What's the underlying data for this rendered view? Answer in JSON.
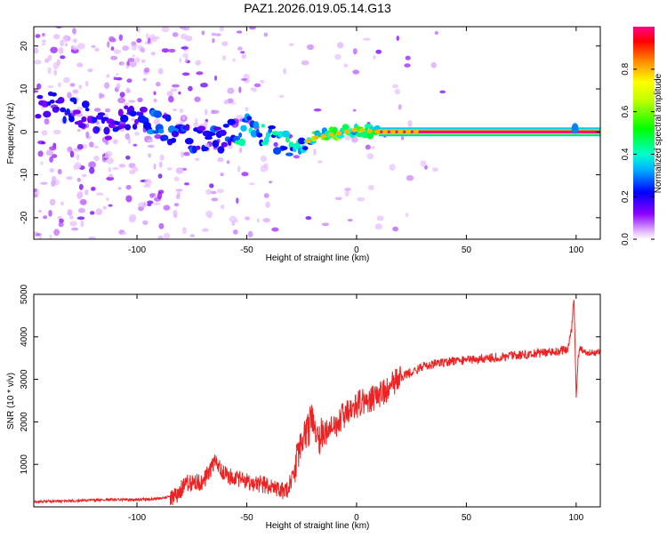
{
  "title": "PAZ1.2026.019.05.14.G13",
  "chart_data": [
    {
      "type": "heatmap",
      "xlabel": "Height of straight line (km)",
      "ylabel": "Frequency (Hz)",
      "xlim": [
        -147,
        111
      ],
      "ylim": [
        -25,
        24.5
      ],
      "xticks": [
        -100,
        -50,
        0,
        50,
        100
      ],
      "yticks": [
        -20,
        -10,
        0,
        10,
        20
      ],
      "colorbar": {
        "label": "Normalized spectral amplitude",
        "range": [
          0,
          1
        ],
        "ticks": [
          0.0,
          0.2,
          0.4,
          0.6,
          0.8
        ]
      },
      "ridge": {
        "description": "Dominant-frequency ridge",
        "points": [
          {
            "x": -135,
            "f": 6
          },
          {
            "x": -125,
            "f": 4
          },
          {
            "x": -115,
            "f": 1
          },
          {
            "x": -100,
            "f": 4
          },
          {
            "x": -90,
            "f": 2
          },
          {
            "x": -80,
            "f": -1
          },
          {
            "x": -70,
            "f": -2
          },
          {
            "x": -60,
            "f": -1
          },
          {
            "x": -50,
            "f": 1
          },
          {
            "x": -42,
            "f": -1
          },
          {
            "x": -35,
            "f": -2
          },
          {
            "x": -28,
            "f": -4
          },
          {
            "x": -20,
            "f": -1.5
          },
          {
            "x": -10,
            "f": -0.5
          },
          {
            "x": 0,
            "f": 0.5
          },
          {
            "x": 10,
            "f": 0
          },
          {
            "x": 50,
            "f": 0
          },
          {
            "x": 96,
            "f": 0
          },
          {
            "x": 100,
            "f": 0.5
          },
          {
            "x": 111,
            "f": 0
          }
        ],
        "steady_band": {
          "x_from": 10,
          "x_to": 111,
          "f": 0,
          "amplitude": 1.0
        }
      }
    },
    {
      "type": "line",
      "xlabel": "Height of straight line (km)",
      "ylabel": "SNR (10 * v/v)",
      "xlim": [
        -147,
        111
      ],
      "ylim": [
        0,
        5000
      ],
      "xticks": [
        -100,
        -50,
        0,
        50,
        100
      ],
      "yticks": [
        1000,
        2000,
        3000,
        4000,
        5000
      ],
      "color": "#ee2222",
      "series": [
        {
          "name": "SNR",
          "x": [
            -147,
            -130,
            -115,
            -100,
            -90,
            -82,
            -78,
            -70,
            -64,
            -60,
            -50,
            -40,
            -32,
            -30,
            -25,
            -22,
            -20,
            -18,
            -15,
            -10,
            -5,
            0,
            5,
            10,
            15,
            20,
            30,
            40,
            50,
            60,
            70,
            80,
            90,
            96,
            98,
            99,
            100,
            101,
            102,
            105,
            111
          ],
          "y": [
            120,
            140,
            170,
            170,
            200,
            260,
            550,
            600,
            1100,
            750,
            600,
            500,
            350,
            600,
            1400,
            1800,
            2100,
            1600,
            1700,
            1900,
            2200,
            2400,
            2500,
            2650,
            2800,
            3050,
            3300,
            3400,
            3450,
            3500,
            3550,
            3600,
            3650,
            3700,
            4200,
            5000,
            2600,
            3550,
            3750,
            3600,
            3650
          ]
        }
      ]
    }
  ]
}
